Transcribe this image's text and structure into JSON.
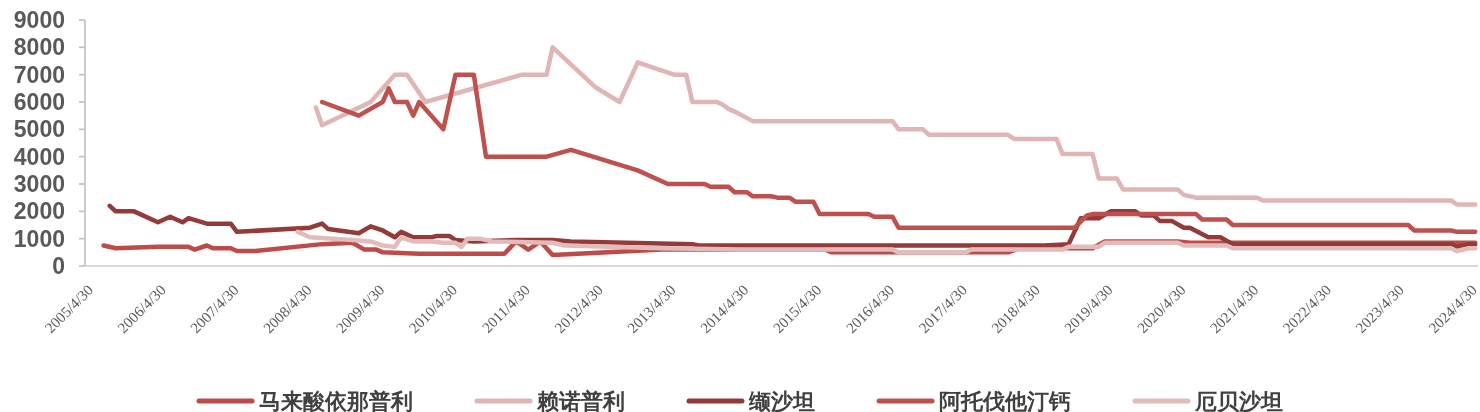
{
  "chart_data": {
    "type": "line",
    "legend": "bottom",
    "xlim": [
      "2005-04-30",
      "2024-06-15"
    ],
    "xticks": [
      {
        "value": "2005-04-30",
        "label": "2005/4/30"
      },
      {
        "value": "2006-04-30",
        "label": "2006/4/30"
      },
      {
        "value": "2007-04-30",
        "label": "2007/4/30"
      },
      {
        "value": "2008-04-30",
        "label": "2008/4/30"
      },
      {
        "value": "2009-04-30",
        "label": "2009/4/30"
      },
      {
        "value": "2010-04-30",
        "label": "2010/4/30"
      },
      {
        "value": "2011-04-30",
        "label": "2011/4/30"
      },
      {
        "value": "2012-04-30",
        "label": "2012/4/30"
      },
      {
        "value": "2013-04-30",
        "label": "2013/4/30"
      },
      {
        "value": "2014-04-30",
        "label": "2014/4/30"
      },
      {
        "value": "2015-04-30",
        "label": "2015/4/30"
      },
      {
        "value": "2016-04-30",
        "label": "2016/4/30"
      },
      {
        "value": "2017-04-30",
        "label": "2017/4/30"
      },
      {
        "value": "2018-04-30",
        "label": "2018/4/30"
      },
      {
        "value": "2019-04-30",
        "label": "2019/4/30"
      },
      {
        "value": "2020-04-30",
        "label": "2020/4/30"
      },
      {
        "value": "2021-04-30",
        "label": "2021/4/30"
      },
      {
        "value": "2022-04-30",
        "label": "2022/4/30"
      },
      {
        "value": "2023-04-30",
        "label": "2023/4/30"
      },
      {
        "value": "2024-04-30",
        "label": "2024/4/30"
      }
    ],
    "ylim": [
      0,
      9000
    ],
    "yticks": [
      0,
      1000,
      2000,
      3000,
      4000,
      5000,
      6000,
      7000,
      8000,
      9000
    ],
    "series": [
      {
        "name": "马来酸依那普利",
        "color": "#be4b48",
        "x": [
          "2005-08",
          "2005-10",
          "2006-05",
          "2006-10",
          "2006-11",
          "2007-01",
          "2007-02",
          "2007-05",
          "2007-06",
          "2007-09",
          "2008-08",
          "2009-01",
          "2009-03",
          "2009-05",
          "2009-06",
          "2009-12",
          "2011-02",
          "2011-04",
          "2011-06",
          "2011-08",
          "2011-10",
          "2013-04",
          "2015-07",
          "2015-08",
          "2018-01",
          "2018-03",
          "2019-03",
          "2019-05",
          "2020-05",
          "2020-07",
          "2024-06"
        ],
        "values": [
          750,
          650,
          700,
          700,
          600,
          750,
          650,
          650,
          550,
          550,
          800,
          850,
          600,
          600,
          500,
          450,
          450,
          900,
          600,
          900,
          400,
          600,
          600,
          500,
          500,
          650,
          650,
          900,
          900,
          850,
          850
        ]
      },
      {
        "name": "赖诺普利",
        "color": "#dfb6b5",
        "x": [
          "2008-07",
          "2008-08",
          "2009-04",
          "2009-08",
          "2009-10",
          "2010-01",
          "2011-05",
          "2011-09",
          "2011-10",
          "2012-05",
          "2012-09",
          "2012-12",
          "2013-06",
          "2013-08",
          "2013-09",
          "2014-01",
          "2014-02",
          "2014-03",
          "2014-04",
          "2014-07",
          "2016-06",
          "2016-07",
          "2016-11",
          "2016-12",
          "2018-01",
          "2018-02",
          "2018-09",
          "2018-10",
          "2019-03",
          "2019-04",
          "2019-07",
          "2019-08",
          "2020-05",
          "2020-06",
          "2020-08",
          "2021-06",
          "2021-07",
          "2024-02",
          "2024-03",
          "2024-06"
        ],
        "values": [
          5800,
          5150,
          6000,
          7000,
          7000,
          6000,
          7000,
          7000,
          8000,
          6550,
          6000,
          7450,
          7000,
          7000,
          6000,
          6000,
          5900,
          5750,
          5650,
          5300,
          5300,
          5000,
          5000,
          4800,
          4800,
          4650,
          4650,
          4100,
          4100,
          3200,
          3200,
          2800,
          2800,
          2600,
          2500,
          2500,
          2400,
          2400,
          2250,
          2250
        ]
      },
      {
        "name": "缬沙坦",
        "color": "#943a38",
        "x": [
          "2005-09",
          "2005-10",
          "2006-01",
          "2006-05",
          "2006-07",
          "2006-09",
          "2006-10",
          "2007-01",
          "2007-05",
          "2007-06",
          "2008-06",
          "2008-08",
          "2008-09",
          "2009-02",
          "2009-04",
          "2009-06",
          "2009-08",
          "2009-09",
          "2009-11",
          "2010-02",
          "2010-03",
          "2010-05",
          "2010-06",
          "2010-09",
          "2011-04",
          "2011-10",
          "2012-01",
          "2013-09",
          "2013-10",
          "2018-07",
          "2018-11",
          "2019-01",
          "2019-04",
          "2019-06",
          "2019-10",
          "2019-11",
          "2020-01",
          "2020-02",
          "2020-04",
          "2020-06",
          "2020-07",
          "2020-10",
          "2020-12",
          "2021-02",
          "2024-02",
          "2024-03",
          "2024-05",
          "2024-06"
        ],
        "values": [
          2200,
          2000,
          2000,
          1600,
          1800,
          1600,
          1750,
          1550,
          1550,
          1250,
          1400,
          1550,
          1350,
          1200,
          1450,
          1300,
          1050,
          1250,
          1050,
          1050,
          1100,
          1100,
          950,
          900,
          950,
          950,
          900,
          800,
          750,
          750,
          800,
          1750,
          1750,
          2000,
          2000,
          1850,
          1850,
          1650,
          1650,
          1400,
          1400,
          1050,
          1050,
          800,
          800,
          700,
          800,
          800
        ]
      },
      {
        "name": "阿托伐他汀钙",
        "color": "#c0504d",
        "x": [
          "2008-08",
          "2009-02",
          "2009-06",
          "2009-07",
          "2009-08",
          "2009-10",
          "2009-11",
          "2009-12",
          "2010-04",
          "2010-06",
          "2010-09",
          "2010-11",
          "2011-09",
          "2012-01",
          "2012-12",
          "2013-05",
          "2013-11",
          "2013-12",
          "2014-03",
          "2014-04",
          "2014-06",
          "2014-07",
          "2014-10",
          "2014-11",
          "2015-01",
          "2015-02",
          "2015-05",
          "2015-06",
          "2016-02",
          "2016-03",
          "2016-06",
          "2016-07",
          "2018-12",
          "2019-02",
          "2019-03",
          "2020-08",
          "2020-09",
          "2021-01",
          "2021-02",
          "2023-07",
          "2023-08",
          "2024-02",
          "2024-03",
          "2024-06"
        ],
        "values": [
          6000,
          5500,
          6000,
          6500,
          6000,
          6000,
          5500,
          6000,
          5000,
          7000,
          7000,
          4000,
          4000,
          4250,
          3500,
          3000,
          3000,
          2900,
          2900,
          2700,
          2700,
          2550,
          2550,
          2500,
          2500,
          2350,
          2350,
          1900,
          1900,
          1800,
          1800,
          1400,
          1400,
          1850,
          1900,
          1900,
          1700,
          1700,
          1500,
          1500,
          1300,
          1300,
          1250,
          1250
        ]
      },
      {
        "name": "厄贝沙坦",
        "color": "#e2bcbb",
        "x": [
          "2008-04",
          "2008-06",
          "2009-01",
          "2009-04",
          "2009-06",
          "2009-08",
          "2009-09",
          "2009-11",
          "2010-02",
          "2010-04",
          "2010-06",
          "2010-07",
          "2010-08",
          "2010-10",
          "2010-12",
          "2011-10",
          "2011-12",
          "2013-04",
          "2014-05",
          "2016-06",
          "2016-07",
          "2017-06",
          "2017-07",
          "2018-10",
          "2018-11",
          "2019-04",
          "2019-05",
          "2020-05",
          "2020-06",
          "2021-01",
          "2021-02",
          "2024-02",
          "2024-03",
          "2024-05",
          "2024-06"
        ],
        "values": [
          1250,
          1050,
          950,
          900,
          750,
          700,
          1050,
          900,
          900,
          850,
          850,
          700,
          1000,
          1000,
          900,
          850,
          750,
          650,
          600,
          600,
          500,
          500,
          600,
          600,
          700,
          700,
          850,
          850,
          750,
          750,
          650,
          650,
          550,
          650,
          650
        ]
      }
    ]
  }
}
